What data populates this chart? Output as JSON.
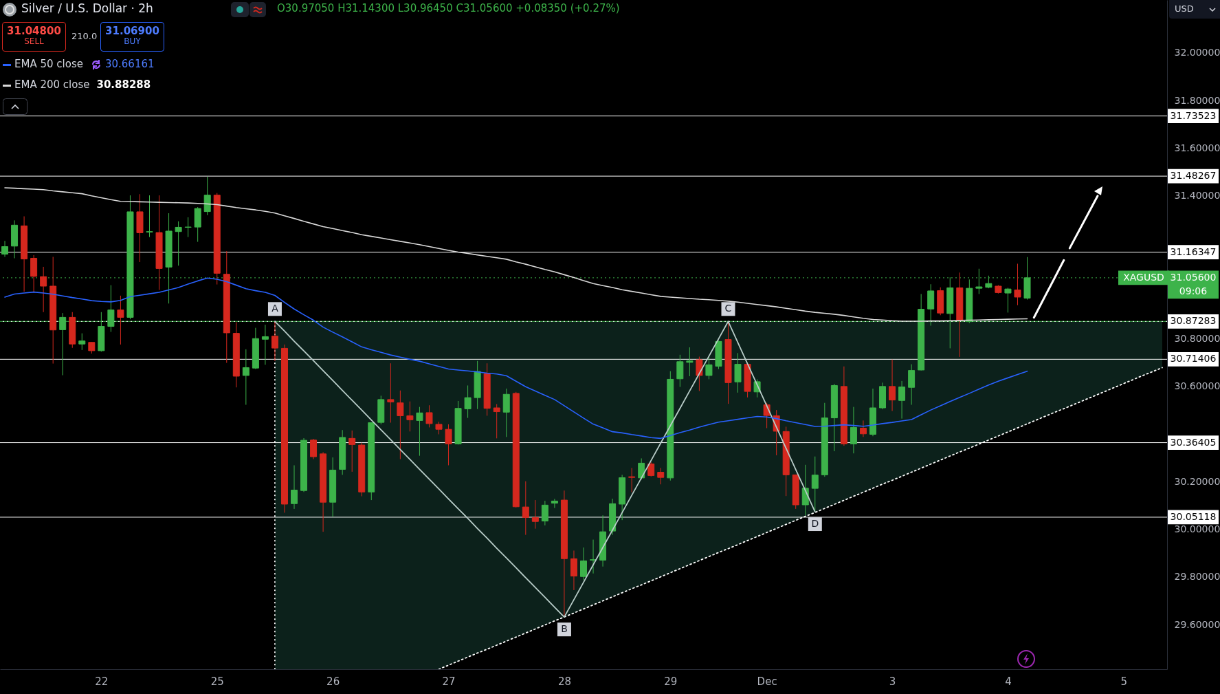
{
  "chart_data": {
    "type": "candlestick",
    "title": "Silver / U.S. Dollar · 2h",
    "categories": [
      null,
      null,
      null,
      null,
      null,
      null,
      null,
      null,
      null,
      null,
      "22",
      null,
      null,
      null,
      null,
      null,
      null,
      null,
      null,
      null,
      null,
      null,
      "25",
      null,
      null,
      null,
      null,
      null,
      null,
      null,
      null,
      null,
      null,
      null,
      "26",
      null,
      null,
      null,
      null,
      null,
      null,
      null,
      null,
      null,
      null,
      null,
      "27",
      null,
      null,
      null,
      null,
      null,
      null,
      null,
      null,
      null,
      null,
      null,
      "28",
      null,
      null,
      null,
      null,
      null,
      null,
      null,
      null,
      null,
      null,
      "29",
      null,
      null,
      null,
      null,
      null,
      null,
      null,
      null,
      null,
      "Dec",
      null,
      null,
      null,
      null,
      null,
      null,
      null,
      null,
      null,
      null,
      null,
      null,
      "3",
      null,
      null,
      null,
      null,
      null,
      null,
      null,
      null,
      null,
      null,
      null,
      "4",
      null,
      null,
      null,
      null,
      null,
      null,
      null,
      null,
      null,
      null,
      null,
      "5",
      null,
      null,
      null,
      null
    ],
    "ohlc": [
      [
        31.155,
        31.211,
        31.144,
        31.187
      ],
      [
        31.189,
        31.297,
        31.138,
        31.277
      ],
      [
        31.274,
        31.314,
        30.998,
        31.135
      ],
      [
        31.138,
        31.151,
        30.998,
        31.062
      ],
      [
        31.061,
        31.102,
        30.912,
        31.021
      ],
      [
        31.021,
        31.144,
        30.696,
        30.837
      ],
      [
        30.838,
        30.908,
        30.647,
        30.89
      ],
      [
        30.89,
        30.912,
        30.762,
        30.778
      ],
      [
        30.778,
        30.823,
        30.753,
        30.791
      ],
      [
        30.785,
        30.786,
        30.738,
        30.75
      ],
      [
        30.75,
        30.912,
        30.746,
        30.852
      ],
      [
        30.852,
        31.025,
        30.829,
        30.921
      ],
      [
        30.921,
        30.981,
        30.776,
        30.89
      ],
      [
        30.89,
        31.402,
        30.882,
        31.333
      ],
      [
        31.333,
        31.407,
        31.122,
        31.245
      ],
      [
        31.248,
        31.402,
        31.227,
        31.25
      ],
      [
        31.246,
        31.402,
        31.005,
        31.095
      ],
      [
        31.101,
        31.327,
        30.948,
        31.252
      ],
      [
        31.25,
        31.293,
        31.107,
        31.268
      ],
      [
        31.268,
        31.31,
        31.227,
        31.269
      ],
      [
        31.269,
        31.353,
        31.207,
        31.347
      ],
      [
        31.334,
        31.48,
        31.319,
        31.403
      ],
      [
        31.403,
        31.412,
        31.028,
        31.075
      ],
      [
        31.071,
        31.168,
        30.699,
        30.825
      ],
      [
        30.823,
        30.87,
        30.596,
        30.643
      ],
      [
        30.646,
        30.756,
        30.523,
        30.679
      ],
      [
        30.677,
        30.846,
        30.673,
        30.801
      ],
      [
        30.798,
        30.859,
        30.691,
        30.809
      ],
      [
        30.811,
        30.873,
        30.707,
        30.761
      ],
      [
        30.76,
        30.776,
        30.07,
        30.106
      ],
      [
        30.108,
        30.269,
        30.086,
        30.165
      ],
      [
        30.163,
        30.383,
        30.157,
        30.374
      ],
      [
        30.375,
        30.38,
        30.295,
        30.305
      ],
      [
        30.317,
        30.324,
        29.99,
        30.114
      ],
      [
        30.114,
        30.302,
        30.053,
        30.249
      ],
      [
        30.252,
        30.417,
        30.229,
        30.386
      ],
      [
        30.382,
        30.415,
        30.242,
        30.356
      ],
      [
        30.354,
        30.364,
        30.139,
        30.157
      ],
      [
        30.157,
        30.448,
        30.123,
        30.448
      ],
      [
        30.449,
        30.561,
        30.441,
        30.545
      ],
      [
        30.545,
        30.697,
        30.448,
        30.535
      ],
      [
        30.531,
        30.583,
        30.295,
        30.477
      ],
      [
        30.477,
        30.537,
        30.411,
        30.46
      ],
      [
        30.457,
        30.514,
        30.309,
        30.489
      ],
      [
        30.49,
        30.521,
        30.428,
        30.444
      ],
      [
        30.441,
        30.452,
        30.399,
        30.42
      ],
      [
        30.42,
        30.441,
        30.269,
        30.359
      ],
      [
        30.359,
        30.539,
        30.356,
        30.508
      ],
      [
        30.506,
        30.604,
        30.468,
        30.553
      ],
      [
        30.553,
        30.707,
        30.505,
        30.663
      ],
      [
        30.653,
        30.697,
        30.477,
        30.508
      ],
      [
        30.51,
        30.526,
        30.382,
        30.494
      ],
      [
        30.492,
        30.591,
        30.388,
        30.567
      ],
      [
        30.571,
        30.577,
        30.092,
        30.095
      ],
      [
        30.094,
        30.202,
        29.977,
        30.05
      ],
      [
        30.05,
        30.123,
        30.003,
        30.033
      ],
      [
        30.035,
        30.12,
        30.017,
        30.102
      ],
      [
        30.11,
        30.128,
        30.09,
        30.119
      ],
      [
        30.123,
        30.163,
        29.632,
        29.877
      ],
      [
        29.877,
        29.911,
        29.745,
        29.804
      ],
      [
        29.802,
        29.924,
        29.787,
        29.868
      ],
      [
        29.871,
        29.957,
        29.815,
        29.873
      ],
      [
        29.871,
        30.059,
        29.844,
        29.99
      ],
      [
        29.993,
        30.129,
        29.977,
        30.108
      ],
      [
        30.106,
        30.229,
        30.039,
        30.217
      ],
      [
        30.221,
        30.258,
        30.156,
        30.218
      ],
      [
        30.216,
        30.298,
        30.209,
        30.278
      ],
      [
        30.275,
        30.282,
        30.222,
        30.226
      ],
      [
        30.24,
        30.258,
        30.189,
        30.218
      ],
      [
        30.216,
        30.664,
        30.205,
        30.63
      ],
      [
        30.632,
        30.733,
        30.598,
        30.704
      ],
      [
        30.701,
        30.764,
        30.643,
        30.707
      ],
      [
        30.712,
        30.725,
        30.581,
        30.646
      ],
      [
        30.646,
        30.728,
        30.63,
        30.691
      ],
      [
        30.685,
        30.793,
        30.673,
        30.789
      ],
      [
        30.797,
        30.873,
        30.527,
        30.616
      ],
      [
        30.619,
        30.74,
        30.574,
        30.693
      ],
      [
        30.693,
        30.696,
        30.554,
        30.579
      ],
      [
        30.577,
        30.63,
        30.554,
        30.62
      ],
      [
        30.523,
        30.531,
        30.425,
        30.478
      ],
      [
        30.477,
        30.501,
        30.311,
        30.412
      ],
      [
        30.411,
        30.431,
        30.14,
        30.229
      ],
      [
        30.229,
        30.229,
        30.086,
        30.103
      ],
      [
        30.103,
        30.271,
        30.059,
        30.173
      ],
      [
        30.172,
        30.306,
        30.074,
        30.228
      ],
      [
        30.229,
        30.531,
        30.221,
        30.468
      ],
      [
        30.468,
        30.611,
        30.328,
        30.604
      ],
      [
        30.6,
        30.684,
        30.351,
        30.359
      ],
      [
        30.359,
        30.514,
        30.319,
        30.428
      ],
      [
        30.425,
        30.457,
        30.388,
        30.401
      ],
      [
        30.399,
        30.591,
        30.391,
        30.51
      ],
      [
        30.51,
        30.616,
        30.504,
        30.6
      ],
      [
        30.6,
        30.713,
        30.497,
        30.543
      ],
      [
        30.541,
        30.623,
        30.465,
        30.598
      ],
      [
        30.596,
        30.693,
        30.523,
        30.667
      ],
      [
        30.669,
        30.988,
        30.667,
        30.924
      ],
      [
        30.925,
        31.029,
        30.855,
        31.001
      ],
      [
        31.002,
        31.016,
        30.899,
        30.908
      ],
      [
        30.906,
        31.058,
        30.76,
        31.014
      ],
      [
        31.014,
        31.078,
        30.724,
        30.876
      ],
      [
        30.872,
        31.049,
        30.866,
        31.012
      ],
      [
        31.012,
        31.094,
        30.988,
        31.018
      ],
      [
        31.016,
        31.065,
        31.012,
        31.032
      ],
      [
        31.021,
        31.025,
        30.99,
        30.994
      ],
      [
        30.992,
        31.014,
        30.91,
        31.009
      ],
      [
        31.005,
        31.115,
        30.941,
        30.975
      ],
      [
        30.9705,
        31.143,
        30.9645,
        31.056
      ],
      null,
      null,
      null,
      null,
      null,
      null,
      null,
      null,
      null,
      null,
      null,
      null,
      null,
      null
    ],
    "colors": [
      "#3db34a",
      "#3db34a",
      "#d6281e",
      "#d6281e",
      "#d6281e",
      "#d6281e",
      "#3db34a",
      "#d6281e",
      "#3db34a",
      "#d6281e",
      "#3db34a",
      "#3db34a",
      "#d6281e",
      "#3db34a",
      "#d6281e",
      "#3db34a",
      "#d6281e",
      "#3db34a",
      "#3db34a",
      "#3db34a",
      "#3db34a",
      "#3db34a",
      "#d6281e",
      "#d6281e",
      "#d6281e",
      "#3db34a",
      "#3db34a",
      "#3db34a",
      "#d6281e",
      "#d6281e",
      "#3db34a",
      "#3db34a",
      "#d6281e",
      "#d6281e",
      "#3db34a",
      "#3db34a",
      "#d6281e",
      "#d6281e",
      "#3db34a",
      "#3db34a",
      "#d6281e",
      "#d6281e",
      "#d6281e",
      "#3db34a",
      "#d6281e",
      "#d6281e",
      "#d6281e",
      "#3db34a",
      "#3db34a",
      "#3db34a",
      "#d6281e",
      "#d6281e",
      "#3db34a",
      "#d6281e",
      "#d6281e",
      "#d6281e",
      "#3db34a",
      "#3db34a",
      "#d6281e",
      "#d6281e",
      "#3db34a",
      "#3db34a",
      "#3db34a",
      "#3db34a",
      "#3db34a",
      "#d6281e",
      "#3db34a",
      "#d6281e",
      "#d6281e",
      "#3db34a",
      "#3db34a",
      "#3db34a",
      "#d6281e",
      "#3db34a",
      "#3db34a",
      "#d6281e",
      "#3db34a",
      "#d6281e",
      "#3db34a",
      "#d6281e",
      "#d6281e",
      "#d6281e",
      "#d6281e",
      "#3db34a",
      "#3db34a",
      "#3db34a",
      "#3db34a",
      "#d6281e",
      "#3db34a",
      "#d6281e",
      "#3db34a",
      "#3db34a",
      "#d6281e",
      "#3db34a",
      "#3db34a",
      "#3db34a",
      "#3db34a",
      "#d6281e",
      "#3db34a",
      "#d6281e",
      "#3db34a",
      "#3db34a",
      "#3db34a",
      "#d6281e",
      "#3db34a",
      "#d6281e",
      "#3db34a",
      null,
      null,
      null,
      null,
      null,
      null,
      null,
      null,
      null,
      null,
      null,
      null,
      null,
      null
    ],
    "series": [
      {
        "type": "line",
        "color": "#ffffff",
        "line_style": "dotted",
        "values": [
          null,
          null,
          null,
          null,
          null,
          null,
          null,
          null,
          null,
          null,
          null,
          null,
          null,
          null,
          null,
          null,
          null,
          null,
          null,
          null,
          null,
          null,
          null,
          null,
          null,
          null,
          null,
          null,
          null,
          null,
          null,
          null,
          null,
          null,
          null,
          null,
          null,
          null,
          null,
          null,
          null,
          null,
          null,
          null,
          null,
          29.413,
          29.43,
          29.447,
          29.464,
          29.481,
          29.497,
          29.514,
          29.531,
          29.548,
          29.565,
          29.582,
          29.599,
          29.616,
          29.632,
          29.649,
          29.666,
          29.683,
          29.7,
          29.717,
          29.734,
          29.751,
          29.767,
          29.784,
          29.801,
          29.818,
          29.835,
          29.852,
          29.869,
          29.886,
          29.903,
          29.919,
          29.936,
          29.953,
          29.97,
          29.987,
          30.004,
          30.021,
          30.038,
          30.055,
          30.071,
          30.088,
          30.105,
          30.122,
          30.139,
          30.156,
          30.173,
          30.19,
          30.206,
          30.223,
          30.24,
          30.257,
          30.274,
          30.291,
          30.308,
          30.325,
          30.341,
          30.358,
          30.375,
          30.392,
          30.409,
          30.426,
          30.443,
          30.46,
          30.477,
          30.494,
          30.51,
          30.527,
          30.544,
          30.561,
          30.578,
          30.595,
          30.612,
          30.629,
          30.646,
          30.662,
          30.679
        ]
      },
      {
        "type": "line",
        "color": "#b8ccc8",
        "values": [
          null,
          null,
          null,
          null,
          null,
          null,
          null,
          null,
          null,
          null,
          null,
          null,
          null,
          null,
          null,
          null,
          null,
          null,
          null,
          null,
          null,
          null,
          null,
          null,
          null,
          null,
          null,
          null,
          30.873,
          30.832,
          30.79,
          30.749,
          30.708,
          30.666,
          30.625,
          30.583,
          30.542,
          30.501,
          30.459,
          30.418,
          30.377,
          30.335,
          30.294,
          30.252,
          30.211,
          30.17,
          30.128,
          30.087,
          30.046,
          30.004,
          29.963,
          29.921,
          29.88,
          29.839,
          29.797,
          29.756,
          29.715,
          29.673,
          29.632,
          29.705,
          29.778,
          29.851,
          29.924,
          29.997,
          30.07,
          30.143,
          30.216,
          30.289,
          30.362,
          30.435,
          30.508,
          30.581,
          30.654,
          30.727,
          30.8,
          30.873,
          30.784,
          30.695,
          30.607,
          30.518,
          30.429,
          30.34,
          30.251,
          30.163,
          30.074,
          null,
          null,
          null,
          null,
          null,
          null,
          null,
          null,
          null,
          null,
          null,
          null,
          null,
          null,
          null,
          null,
          null,
          null,
          null,
          null,
          null,
          null,
          null,
          null,
          null,
          null,
          null,
          null,
          null,
          null,
          null,
          null,
          null,
          null,
          null,
          null
        ]
      },
      {
        "name": "EMA 50 close",
        "type": "line",
        "color": "#2962ff",
        "values": [
          30.975,
          30.988,
          30.992,
          30.996,
          30.992,
          30.987,
          30.98,
          30.973,
          30.967,
          30.96,
          30.957,
          30.955,
          30.961,
          30.977,
          30.983,
          30.989,
          30.995,
          31.005,
          31.015,
          31.03,
          31.043,
          31.055,
          31.05,
          31.04,
          31.025,
          31.01,
          31.002,
          30.995,
          30.982,
          30.953,
          30.925,
          30.901,
          30.878,
          30.849,
          30.828,
          30.808,
          30.787,
          30.766,
          30.754,
          30.743,
          30.732,
          30.723,
          30.714,
          30.706,
          30.695,
          30.684,
          30.673,
          30.669,
          30.665,
          30.661,
          30.656,
          30.652,
          30.645,
          30.622,
          30.599,
          30.581,
          30.563,
          30.545,
          30.519,
          30.493,
          30.467,
          30.442,
          30.426,
          30.41,
          30.405,
          30.398,
          30.392,
          30.385,
          30.382,
          30.394,
          30.406,
          30.417,
          30.429,
          30.44,
          30.45,
          30.456,
          30.462,
          30.468,
          30.474,
          30.472,
          30.465,
          30.456,
          30.448,
          30.44,
          30.432,
          30.433,
          30.436,
          30.439,
          30.436,
          30.433,
          30.438,
          30.444,
          30.449,
          30.455,
          30.461,
          30.481,
          30.501,
          30.519,
          30.537,
          30.554,
          30.571,
          30.589,
          30.606,
          30.622,
          30.636,
          30.65,
          30.664,
          null,
          null,
          null,
          null,
          null,
          null,
          null,
          null,
          null,
          null,
          null,
          null,
          null,
          null
        ]
      },
      {
        "name": "EMA 200 close",
        "type": "line",
        "color": "#d9d9d9",
        "values": [
          31.434,
          31.432,
          31.43,
          31.428,
          31.426,
          31.421,
          31.417,
          31.413,
          31.409,
          31.4,
          31.392,
          31.384,
          31.377,
          31.376,
          31.375,
          31.374,
          31.373,
          31.372,
          31.371,
          31.37,
          31.368,
          31.366,
          31.363,
          31.357,
          31.351,
          31.346,
          31.341,
          31.335,
          31.328,
          31.316,
          31.305,
          31.293,
          31.282,
          31.271,
          31.263,
          31.254,
          31.246,
          31.237,
          31.23,
          31.223,
          31.216,
          31.209,
          31.202,
          31.195,
          31.187,
          31.179,
          31.171,
          31.164,
          31.158,
          31.152,
          31.146,
          31.14,
          31.134,
          31.123,
          31.113,
          31.102,
          31.091,
          31.081,
          31.069,
          31.057,
          31.044,
          31.032,
          31.023,
          31.015,
          31.006,
          30.999,
          30.992,
          30.985,
          30.978,
          30.975,
          30.972,
          30.969,
          30.966,
          30.964,
          30.961,
          30.958,
          30.954,
          30.949,
          30.944,
          30.939,
          30.934,
          30.928,
          30.922,
          30.916,
          30.911,
          30.907,
          30.903,
          30.898,
          30.892,
          30.886,
          30.881,
          30.879,
          30.876,
          30.874,
          30.874,
          30.874,
          30.875,
          30.875,
          30.876,
          30.877,
          30.878,
          30.879,
          30.88,
          30.881,
          30.882,
          30.883,
          30.884,
          null,
          null,
          null,
          null,
          null,
          null,
          null,
          null,
          null,
          null,
          null,
          null,
          null,
          null
        ]
      }
    ],
    "ylim": [
      29.413,
      32.222
    ],
    "yticks": [
      {
        "value": 29.6,
        "label": "29.60000"
      },
      {
        "value": 29.8,
        "label": "29.80000"
      },
      {
        "value": 30,
        "label": "30.00000"
      },
      {
        "value": 30.2,
        "label": "30.20000"
      },
      {
        "value": 30.6,
        "label": "30.60000"
      },
      {
        "value": 30.8,
        "label": "30.80000"
      },
      {
        "value": 31.4,
        "label": "31.40000"
      },
      {
        "value": 31.6,
        "label": "31.60000"
      },
      {
        "value": 31.8,
        "label": "31.80000"
      },
      {
        "value": 32,
        "label": "32.00000"
      }
    ],
    "ref_lines": [
      {
        "axis": "y",
        "value": 30.873,
        "color": "#3db34a"
      },
      {
        "axis": "y",
        "value": 31.73523,
        "label": "31.73523",
        "color": "#ffffff"
      },
      {
        "axis": "y",
        "value": 31.48267,
        "label": "31.48267",
        "color": "#ffffff"
      },
      {
        "axis": "y",
        "value": 31.16347,
        "label": "31.16347",
        "color": "#ffffff"
      },
      {
        "axis": "y",
        "value": 31.056,
        "label": "31.05600",
        "color": "#3db34a",
        "line_style": "dotted"
      },
      {
        "axis": "y",
        "value": 30.87283,
        "label": "30.87283",
        "color": "#ffffff",
        "line_style": "dotted"
      },
      {
        "axis": "y",
        "value": 30.71406,
        "label": "30.71406",
        "color": "#ffffff"
      },
      {
        "axis": "y",
        "value": 30.36405,
        "label": "30.36405",
        "color": "#ffffff"
      },
      {
        "axis": "y",
        "value": 30.05118,
        "label": "30.05118",
        "color": "#ffffff"
      }
    ],
    "annotations": [
      "O30.97050 H31.14300 L30.96450 C31.05600 +0.08350 (+0.27%)",
      "31.04800",
      "SELL",
      "210.0",
      "31.06900",
      "BUY",
      "30.66161",
      "30.88288",
      "USD",
      "XAGUSD",
      "09:06",
      "A",
      "B",
      "C",
      "D"
    ],
    "legend": "top left"
  }
}
